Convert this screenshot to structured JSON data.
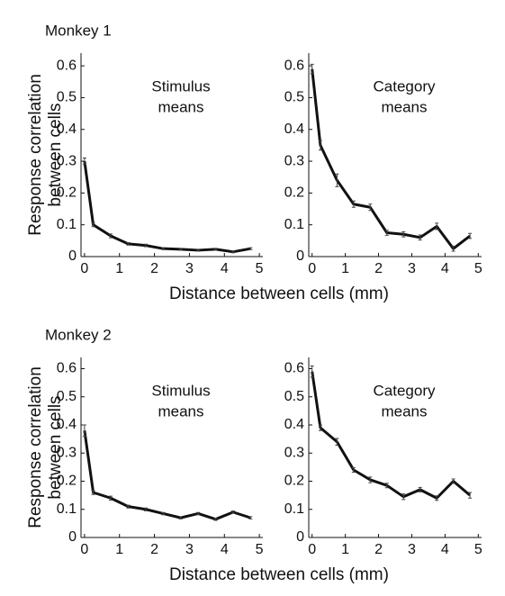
{
  "chart_data": [
    {
      "type": "line",
      "panel_title": "Monkey 1",
      "y_label": [
        "Response correlation",
        "between cells"
      ],
      "x_label": "Distance between cells (mm)",
      "annotation": [
        "Stimulus",
        "means"
      ],
      "color": "#111111",
      "x": [
        0,
        0.25,
        0.75,
        1.25,
        1.75,
        2.25,
        2.75,
        3.25,
        3.75,
        4.25,
        4.75
      ],
      "values": [
        0.3,
        0.1,
        0.065,
        0.04,
        0.035,
        0.025,
        0.023,
        0.02,
        0.023,
        0.015,
        0.025
      ],
      "errors": [
        0.01,
        0.006,
        0.006,
        0.004,
        0.004,
        0.003,
        0.003,
        0.003,
        0.003,
        0.003,
        0.003
      ],
      "xlim": [
        -0.1,
        5.1
      ],
      "ylim": [
        0,
        0.64
      ],
      "xticks": [
        0,
        1,
        2,
        3,
        4,
        5
      ],
      "yticks": [
        0,
        0.1,
        0.2,
        0.3,
        0.4,
        0.5,
        0.6
      ]
    },
    {
      "type": "line",
      "annotation": [
        "Category",
        "means"
      ],
      "color": "#111111",
      "x": [
        0,
        0.25,
        0.75,
        1.25,
        1.75,
        2.25,
        2.75,
        3.25,
        3.75,
        4.25,
        4.75
      ],
      "values": [
        0.59,
        0.35,
        0.24,
        0.165,
        0.155,
        0.075,
        0.07,
        0.06,
        0.095,
        0.025,
        0.065
      ],
      "errors": [
        0.015,
        0.015,
        0.02,
        0.01,
        0.01,
        0.008,
        0.008,
        0.008,
        0.01,
        0.008,
        0.008
      ],
      "xlim": [
        -0.1,
        5.1
      ],
      "ylim": [
        0,
        0.64
      ],
      "xticks": [
        0,
        1,
        2,
        3,
        4,
        5
      ],
      "yticks": [
        0,
        0.1,
        0.2,
        0.3,
        0.4,
        0.5,
        0.6
      ]
    },
    {
      "type": "line",
      "panel_title": "Monkey 2",
      "y_label": [
        "Response correlation",
        "between cells"
      ],
      "x_label": "Distance between cells (mm)",
      "annotation": [
        "Stimulus",
        "means"
      ],
      "color": "#111111",
      "x": [
        0,
        0.25,
        0.75,
        1.25,
        1.75,
        2.25,
        2.75,
        3.25,
        3.75,
        4.25,
        4.75
      ],
      "values": [
        0.38,
        0.16,
        0.14,
        0.11,
        0.1,
        0.085,
        0.07,
        0.085,
        0.065,
        0.09,
        0.07
      ],
      "errors": [
        0.02,
        0.007,
        0.007,
        0.005,
        0.005,
        0.004,
        0.004,
        0.004,
        0.004,
        0.004,
        0.004
      ],
      "xlim": [
        -0.1,
        5.1
      ],
      "ylim": [
        0,
        0.64
      ],
      "xticks": [
        0,
        1,
        2,
        3,
        4,
        5
      ],
      "yticks": [
        0,
        0.1,
        0.2,
        0.3,
        0.4,
        0.5,
        0.6
      ]
    },
    {
      "type": "line",
      "annotation": [
        "Category",
        "means"
      ],
      "color": "#111111",
      "x": [
        0,
        0.25,
        0.75,
        1.25,
        1.75,
        2.25,
        2.75,
        3.25,
        3.75,
        4.25,
        4.75
      ],
      "values": [
        0.59,
        0.39,
        0.34,
        0.24,
        0.205,
        0.185,
        0.145,
        0.17,
        0.14,
        0.2,
        0.15
      ],
      "errors": [
        0.02,
        0.01,
        0.012,
        0.008,
        0.01,
        0.008,
        0.01,
        0.008,
        0.008,
        0.008,
        0.01
      ],
      "xlim": [
        -0.1,
        5.1
      ],
      "ylim": [
        0,
        0.64
      ],
      "xticks": [
        0,
        1,
        2,
        3,
        4,
        5
      ],
      "yticks": [
        0,
        0.1,
        0.2,
        0.3,
        0.4,
        0.5,
        0.6
      ]
    }
  ]
}
